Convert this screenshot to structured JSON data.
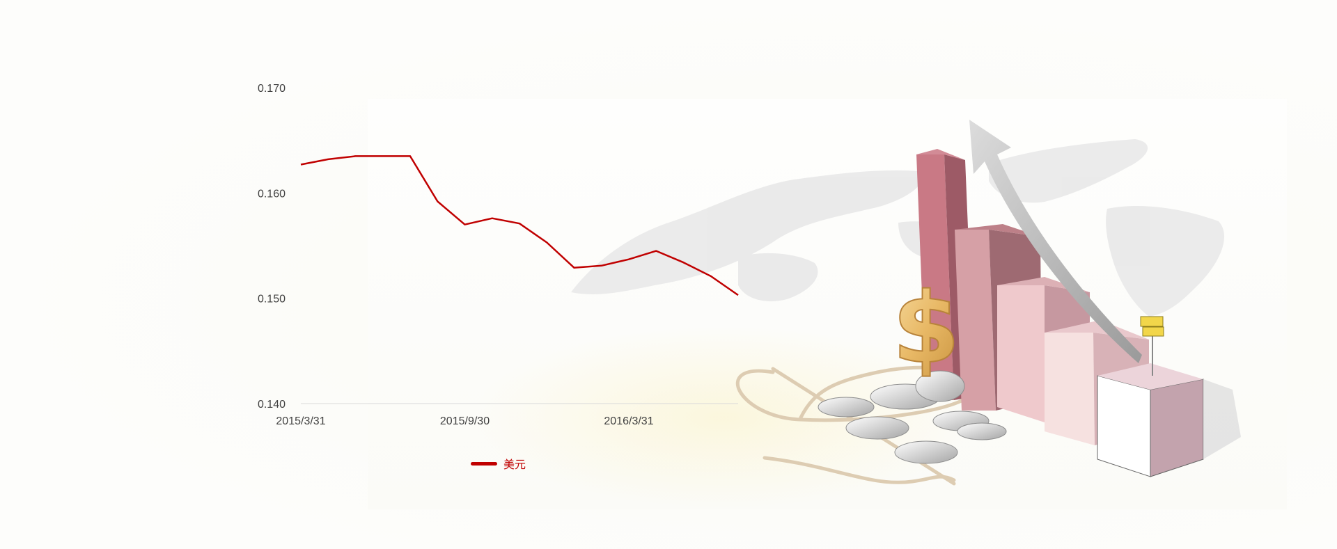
{
  "chart_data": {
    "type": "line",
    "x": [
      "2015/3/31",
      "2015/4/30",
      "2015/5/31",
      "2015/6/30",
      "2015/7/31",
      "2015/8/31",
      "2015/9/30",
      "2015/10/31",
      "2015/11/30",
      "2015/12/31",
      "2016/1/31",
      "2016/2/29",
      "2016/3/31",
      "2016/4/30",
      "2016/5/31",
      "2016/6/30",
      "2016/7/15"
    ],
    "series": [
      {
        "name": "美元",
        "color": "#c00000",
        "values": [
          0.1627,
          0.1632,
          0.1635,
          0.1635,
          0.1635,
          0.1592,
          0.157,
          0.1576,
          0.1571,
          0.1553,
          0.1529,
          0.1531,
          0.1537,
          0.1545,
          0.1534,
          0.1521,
          0.1503
        ]
      }
    ],
    "yticks": [
      "0.170",
      "0.160",
      "0.150",
      "0.140"
    ],
    "xticks": [
      "2015/3/31",
      "2015/9/30",
      "2016/3/31"
    ],
    "ylim": [
      0.14,
      0.17
    ],
    "grid": false,
    "legend": "bottom"
  },
  "decoration": {
    "illustration": "finance-growth-illustration",
    "elements": [
      "world-map",
      "rising-bar-chart",
      "upward-arrow",
      "dollar-signs",
      "signpost"
    ],
    "colors": {
      "line": "#c00000",
      "bar_dark": "#c97985",
      "bar_light": "#f3d6d8",
      "gold": "#e8b865",
      "map": "#e9e9e9"
    }
  }
}
